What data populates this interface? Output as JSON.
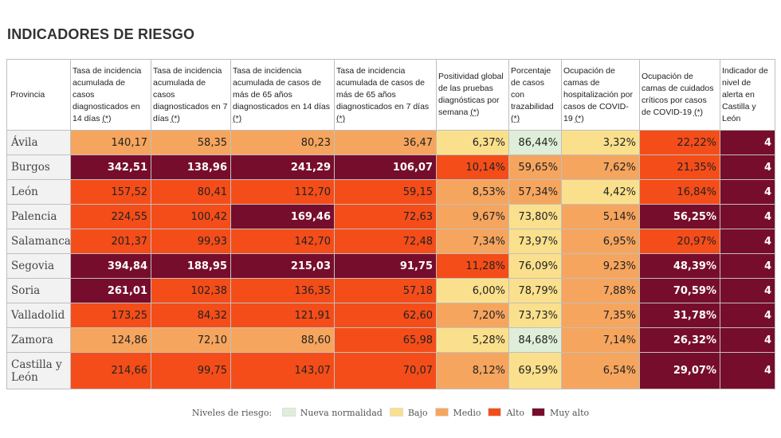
{
  "title": "INDICADORES DE RIESGO",
  "colors": {
    "nueva_normalidad": "#dfeed8",
    "bajo": "#fae08c",
    "medio": "#f6a55e",
    "alto": "#f44d19",
    "muy_alto": "#770d2d"
  },
  "headers": [
    "Provincia",
    "Tasa de incidencia acumulada de casos diagnosticados en 14 días",
    "Tasa de incidencia acumulada de casos diagnosticados en 7 días",
    "Tasa de incidencia acumulada de casos de más de 65 años diagnosticados en 14 días",
    "Tasa de incidencia acumulada de casos de más de 65 años diagnosticados en 7 días",
    "Positividad global de las pruebas diagnósticas por semana",
    "Porcentaje de casos con trazabilidad",
    "Ocupación de camas de hospitalización por casos de COVID-19",
    "Ocupación de camas de cuidados críticos por casos de COVID-19",
    "Indicador de nivel de alerta en Castilla y León"
  ],
  "header_asterisk": "(*)",
  "rows": [
    {
      "province": "Ávila",
      "cells": [
        [
          "140,17",
          "m"
        ],
        [
          "58,35",
          "m"
        ],
        [
          "80,23",
          "m"
        ],
        [
          "36,47",
          "m"
        ],
        [
          "6,37%",
          "b"
        ],
        [
          "86,44%",
          "n"
        ],
        [
          "3,32%",
          "b"
        ],
        [
          "22,22%",
          "a"
        ],
        [
          "4",
          "ma"
        ]
      ]
    },
    {
      "province": "Burgos",
      "cells": [
        [
          "342,51",
          "ma"
        ],
        [
          "138,96",
          "ma"
        ],
        [
          "241,29",
          "ma"
        ],
        [
          "106,07",
          "ma"
        ],
        [
          "10,14%",
          "a"
        ],
        [
          "59,65%",
          "m"
        ],
        [
          "7,62%",
          "m"
        ],
        [
          "21,35%",
          "a"
        ],
        [
          "4",
          "ma"
        ]
      ]
    },
    {
      "province": "León",
      "cells": [
        [
          "157,52",
          "a"
        ],
        [
          "80,41",
          "a"
        ],
        [
          "112,70",
          "a"
        ],
        [
          "59,15",
          "a"
        ],
        [
          "8,53%",
          "m"
        ],
        [
          "57,34%",
          "m"
        ],
        [
          "4,42%",
          "b"
        ],
        [
          "16,84%",
          "a"
        ],
        [
          "4",
          "ma"
        ]
      ]
    },
    {
      "province": "Palencia",
      "cells": [
        [
          "224,55",
          "a"
        ],
        [
          "100,42",
          "a"
        ],
        [
          "169,46",
          "ma"
        ],
        [
          "72,63",
          "a"
        ],
        [
          "9,67%",
          "m"
        ],
        [
          "73,80%",
          "b"
        ],
        [
          "5,14%",
          "m"
        ],
        [
          "56,25%",
          "ma"
        ],
        [
          "4",
          "ma"
        ]
      ]
    },
    {
      "province": "Salamanca",
      "cells": [
        [
          "201,37",
          "a"
        ],
        [
          "99,93",
          "a"
        ],
        [
          "142,70",
          "a"
        ],
        [
          "72,48",
          "a"
        ],
        [
          "7,34%",
          "m"
        ],
        [
          "73,97%",
          "b"
        ],
        [
          "6,95%",
          "m"
        ],
        [
          "20,97%",
          "a"
        ],
        [
          "4",
          "ma"
        ]
      ]
    },
    {
      "province": "Segovia",
      "cells": [
        [
          "394,84",
          "ma"
        ],
        [
          "188,95",
          "ma"
        ],
        [
          "215,03",
          "ma"
        ],
        [
          "91,75",
          "ma"
        ],
        [
          "11,28%",
          "a"
        ],
        [
          "76,09%",
          "b"
        ],
        [
          "9,23%",
          "m"
        ],
        [
          "48,39%",
          "ma"
        ],
        [
          "4",
          "ma"
        ]
      ]
    },
    {
      "province": "Soria",
      "cells": [
        [
          "261,01",
          "ma"
        ],
        [
          "102,38",
          "a"
        ],
        [
          "136,35",
          "a"
        ],
        [
          "57,18",
          "a"
        ],
        [
          "6,00%",
          "b"
        ],
        [
          "78,79%",
          "b"
        ],
        [
          "7,88%",
          "m"
        ],
        [
          "70,59%",
          "ma"
        ],
        [
          "4",
          "ma"
        ]
      ]
    },
    {
      "province": "Valladolid",
      "cells": [
        [
          "173,25",
          "a"
        ],
        [
          "84,32",
          "a"
        ],
        [
          "121,91",
          "a"
        ],
        [
          "62,60",
          "a"
        ],
        [
          "7,20%",
          "m"
        ],
        [
          "73,73%",
          "b"
        ],
        [
          "7,35%",
          "m"
        ],
        [
          "31,78%",
          "ma"
        ],
        [
          "4",
          "ma"
        ]
      ]
    },
    {
      "province": "Zamora",
      "cells": [
        [
          "124,86",
          "m"
        ],
        [
          "72,10",
          "m"
        ],
        [
          "88,60",
          "m"
        ],
        [
          "65,98",
          "a"
        ],
        [
          "5,28%",
          "b"
        ],
        [
          "84,68%",
          "n"
        ],
        [
          "7,14%",
          "m"
        ],
        [
          "26,32%",
          "ma"
        ],
        [
          "4",
          "ma"
        ]
      ]
    },
    {
      "province": "Castilla y León",
      "cells": [
        [
          "214,66",
          "a"
        ],
        [
          "99,75",
          "a"
        ],
        [
          "143,07",
          "a"
        ],
        [
          "70,07",
          "a"
        ],
        [
          "8,12%",
          "m"
        ],
        [
          "69,59%",
          "b"
        ],
        [
          "6,54%",
          "m"
        ],
        [
          "29,07%",
          "ma"
        ],
        [
          "4",
          "ma"
        ]
      ]
    }
  ],
  "legend": {
    "label": "Niveles de riesgo:",
    "items": [
      {
        "label": "Nueva normalidad",
        "level": "n"
      },
      {
        "label": "Bajo",
        "level": "b"
      },
      {
        "label": "Medio",
        "level": "m"
      },
      {
        "label": "Alto",
        "level": "a"
      },
      {
        "label": "Muy alto",
        "level": "ma"
      }
    ]
  }
}
